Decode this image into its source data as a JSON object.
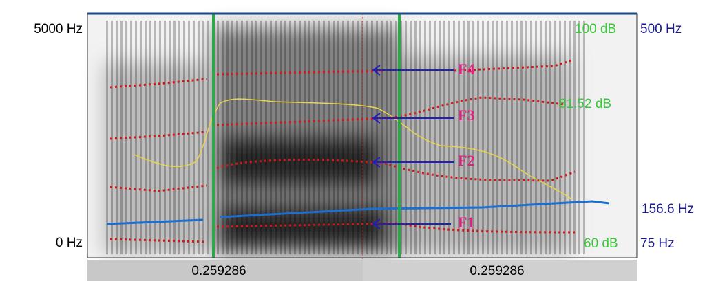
{
  "left_axis": {
    "top": "5000 Hz",
    "bottom": "0 Hz"
  },
  "right_axis": {
    "intensity_top": "100 dB",
    "intensity_mid": "81.52 dB",
    "intensity_bottom": "60 dB",
    "pitch_top": "500 Hz",
    "pitch_mid": "156.6 Hz",
    "pitch_bottom": "75 Hz"
  },
  "formants": [
    "F4",
    "F3",
    "F2",
    "F1"
  ],
  "time_labels": [
    "0.259286",
    "0.259286"
  ]
}
